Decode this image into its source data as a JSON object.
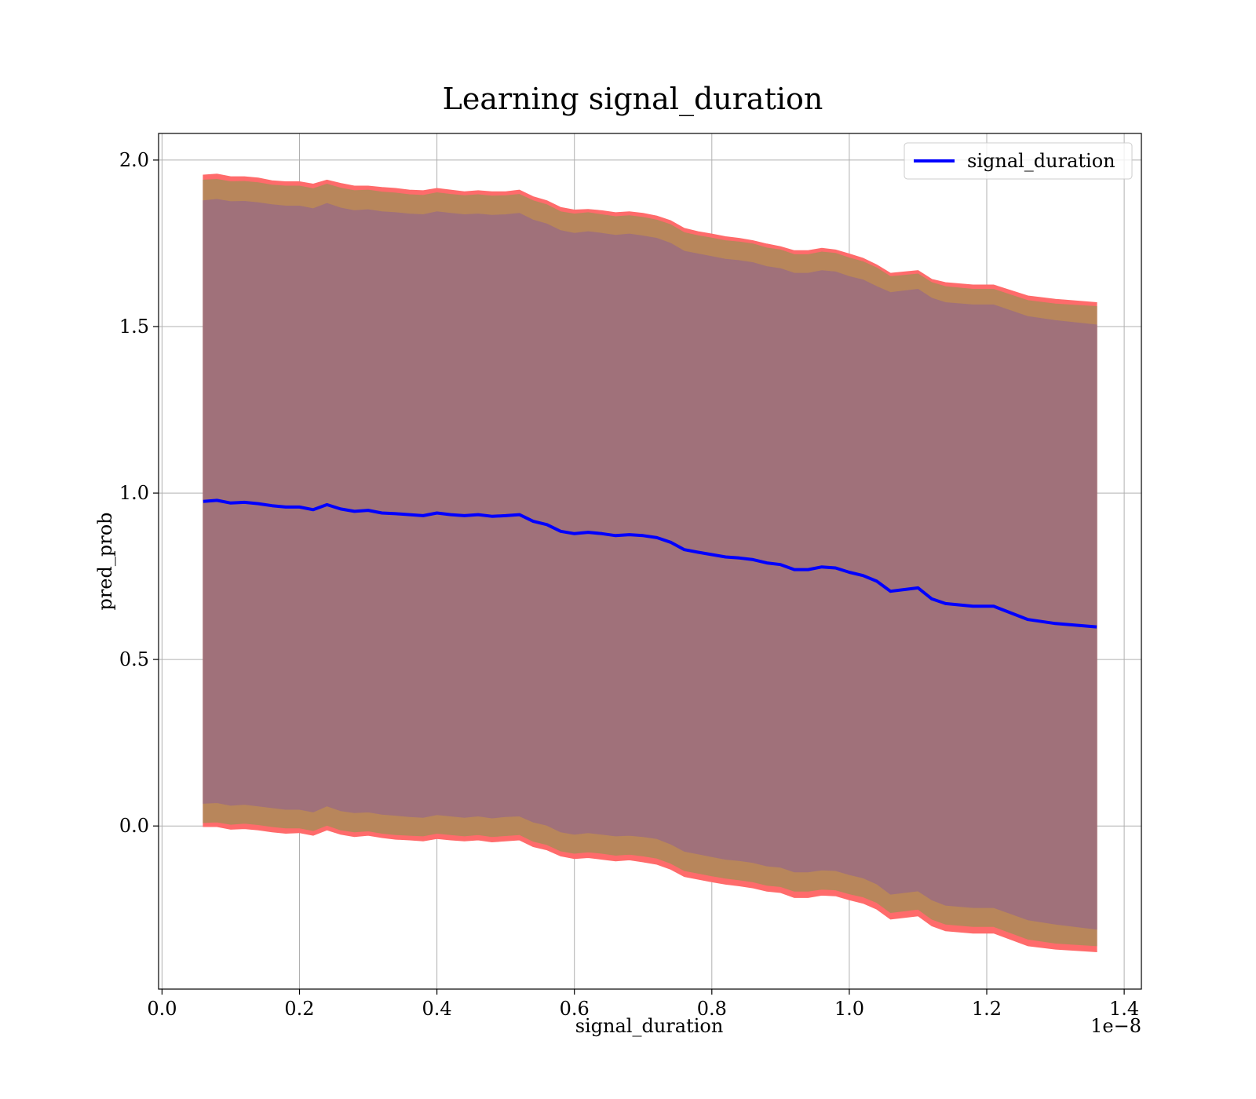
{
  "chart_data": {
    "type": "area",
    "title": "Learning signal_duration",
    "xlabel": "signal_duration",
    "ylabel": "pred_prob",
    "x_offset_text": "1e−8",
    "xlim": [
      -0.005,
      1.425
    ],
    "ylim": [
      -0.49,
      2.08
    ],
    "x_unit_scale": "1e-8",
    "x_ticks": [
      0.0,
      0.2,
      0.4,
      0.6,
      0.8,
      1.0,
      1.2,
      1.4
    ],
    "x_tick_labels": [
      "0.0",
      "0.2",
      "0.4",
      "0.6",
      "0.8",
      "1.0",
      "1.2",
      "1.4"
    ],
    "y_ticks": [
      0.0,
      0.5,
      1.0,
      1.5,
      2.0
    ],
    "y_tick_labels": [
      "0.0",
      "0.5",
      "1.0",
      "1.5",
      "2.0"
    ],
    "grid": true,
    "legend_position": "top-right",
    "series": [
      {
        "name": "signal_duration",
        "color": "#0000ff",
        "x": [
          0.06,
          0.08,
          0.1,
          0.12,
          0.14,
          0.16,
          0.18,
          0.2,
          0.22,
          0.24,
          0.26,
          0.28,
          0.3,
          0.32,
          0.34,
          0.36,
          0.38,
          0.4,
          0.42,
          0.44,
          0.46,
          0.48,
          0.5,
          0.52,
          0.54,
          0.56,
          0.58,
          0.6,
          0.62,
          0.64,
          0.66,
          0.68,
          0.7,
          0.72,
          0.74,
          0.76,
          0.78,
          0.8,
          0.82,
          0.84,
          0.86,
          0.88,
          0.9,
          0.92,
          0.94,
          0.96,
          0.98,
          1.0,
          1.02,
          1.04,
          1.06,
          1.1,
          1.12,
          1.14,
          1.18,
          1.21,
          1.26,
          1.3,
          1.36
        ],
        "values": [
          0.975,
          0.978,
          0.97,
          0.972,
          0.968,
          0.962,
          0.958,
          0.958,
          0.95,
          0.965,
          0.952,
          0.945,
          0.948,
          0.94,
          0.938,
          0.935,
          0.932,
          0.94,
          0.935,
          0.932,
          0.935,
          0.93,
          0.932,
          0.935,
          0.915,
          0.905,
          0.885,
          0.878,
          0.882,
          0.878,
          0.872,
          0.875,
          0.872,
          0.866,
          0.852,
          0.83,
          0.822,
          0.815,
          0.808,
          0.805,
          0.8,
          0.79,
          0.785,
          0.77,
          0.77,
          0.778,
          0.775,
          0.762,
          0.752,
          0.735,
          0.705,
          0.715,
          0.682,
          0.668,
          0.66,
          0.66,
          0.62,
          0.608,
          0.598
        ]
      }
    ],
    "bands": [
      {
        "name": "outer",
        "color": "#ff6b6b",
        "upper": [
          1.955,
          1.958,
          1.95,
          1.95,
          1.946,
          1.938,
          1.935,
          1.935,
          1.928,
          1.94,
          1.93,
          1.922,
          1.922,
          1.918,
          1.915,
          1.91,
          1.908,
          1.915,
          1.91,
          1.905,
          1.908,
          1.905,
          1.905,
          1.91,
          1.89,
          1.878,
          1.858,
          1.85,
          1.852,
          1.848,
          1.842,
          1.845,
          1.84,
          1.832,
          1.818,
          1.795,
          1.785,
          1.778,
          1.77,
          1.765,
          1.758,
          1.748,
          1.74,
          1.728,
          1.728,
          1.735,
          1.73,
          1.718,
          1.705,
          1.685,
          1.66,
          1.668,
          1.642,
          1.632,
          1.625,
          1.625,
          1.592,
          1.582,
          1.572
        ],
        "lower": [
          -0.002,
          -0.002,
          -0.01,
          -0.008,
          -0.012,
          -0.018,
          -0.022,
          -0.02,
          -0.028,
          -0.012,
          -0.025,
          -0.032,
          -0.028,
          -0.035,
          -0.04,
          -0.042,
          -0.045,
          -0.038,
          -0.042,
          -0.045,
          -0.042,
          -0.048,
          -0.045,
          -0.042,
          -0.062,
          -0.072,
          -0.09,
          -0.098,
          -0.095,
          -0.1,
          -0.105,
          -0.102,
          -0.108,
          -0.115,
          -0.13,
          -0.152,
          -0.16,
          -0.168,
          -0.175,
          -0.18,
          -0.186,
          -0.196,
          -0.2,
          -0.215,
          -0.215,
          -0.208,
          -0.21,
          -0.222,
          -0.232,
          -0.25,
          -0.28,
          -0.27,
          -0.3,
          -0.315,
          -0.322,
          -0.322,
          -0.36,
          -0.37,
          -0.378
        ]
      },
      {
        "name": "middle",
        "color": "#b8865b",
        "upper": [
          1.94,
          1.942,
          1.935,
          1.936,
          1.932,
          1.925,
          1.922,
          1.922,
          1.914,
          1.928,
          1.916,
          1.908,
          1.91,
          1.904,
          1.901,
          1.896,
          1.894,
          1.902,
          1.897,
          1.893,
          1.896,
          1.892,
          1.893,
          1.897,
          1.878,
          1.866,
          1.845,
          1.838,
          1.842,
          1.836,
          1.83,
          1.833,
          1.828,
          1.82,
          1.806,
          1.782,
          1.773,
          1.766,
          1.758,
          1.754,
          1.748,
          1.736,
          1.73,
          1.716,
          1.716,
          1.724,
          1.72,
          1.706,
          1.695,
          1.676,
          1.65,
          1.658,
          1.632,
          1.62,
          1.612,
          1.612,
          1.578,
          1.568,
          1.56
        ],
        "lower": [
          0.01,
          0.012,
          0.005,
          0.008,
          0.004,
          -0.002,
          -0.006,
          -0.006,
          -0.014,
          0.002,
          -0.012,
          -0.018,
          -0.015,
          -0.022,
          -0.026,
          -0.028,
          -0.03,
          -0.022,
          -0.026,
          -0.03,
          -0.026,
          -0.032,
          -0.029,
          -0.026,
          -0.046,
          -0.056,
          -0.075,
          -0.082,
          -0.078,
          -0.082,
          -0.088,
          -0.085,
          -0.09,
          -0.097,
          -0.112,
          -0.134,
          -0.142,
          -0.15,
          -0.157,
          -0.162,
          -0.168,
          -0.178,
          -0.182,
          -0.196,
          -0.196,
          -0.19,
          -0.192,
          -0.204,
          -0.213,
          -0.23,
          -0.26,
          -0.25,
          -0.28,
          -0.295,
          -0.302,
          -0.302,
          -0.34,
          -0.352,
          -0.36
        ]
      },
      {
        "name": "inner",
        "color": "#a0717a",
        "upper": [
          1.878,
          1.882,
          1.875,
          1.876,
          1.872,
          1.866,
          1.862,
          1.862,
          1.854,
          1.87,
          1.856,
          1.848,
          1.851,
          1.845,
          1.842,
          1.838,
          1.836,
          1.845,
          1.84,
          1.836,
          1.838,
          1.834,
          1.836,
          1.84,
          1.82,
          1.808,
          1.788,
          1.78,
          1.785,
          1.78,
          1.774,
          1.778,
          1.772,
          1.765,
          1.75,
          1.726,
          1.718,
          1.71,
          1.702,
          1.698,
          1.692,
          1.68,
          1.674,
          1.66,
          1.66,
          1.668,
          1.664,
          1.65,
          1.64,
          1.62,
          1.602,
          1.612,
          1.585,
          1.572,
          1.565,
          1.565,
          1.53,
          1.518,
          1.505
        ],
        "lower": [
          0.068,
          0.07,
          0.062,
          0.065,
          0.06,
          0.055,
          0.05,
          0.05,
          0.042,
          0.06,
          0.046,
          0.04,
          0.042,
          0.035,
          0.032,
          0.028,
          0.026,
          0.034,
          0.03,
          0.026,
          0.03,
          0.024,
          0.028,
          0.03,
          0.012,
          0.002,
          -0.018,
          -0.025,
          -0.02,
          -0.025,
          -0.03,
          -0.028,
          -0.032,
          -0.038,
          -0.054,
          -0.076,
          -0.084,
          -0.092,
          -0.1,
          -0.104,
          -0.11,
          -0.12,
          -0.124,
          -0.138,
          -0.138,
          -0.132,
          -0.134,
          -0.146,
          -0.156,
          -0.174,
          -0.205,
          -0.195,
          -0.222,
          -0.238,
          -0.245,
          -0.245,
          -0.282,
          -0.295,
          -0.31
        ]
      }
    ]
  }
}
